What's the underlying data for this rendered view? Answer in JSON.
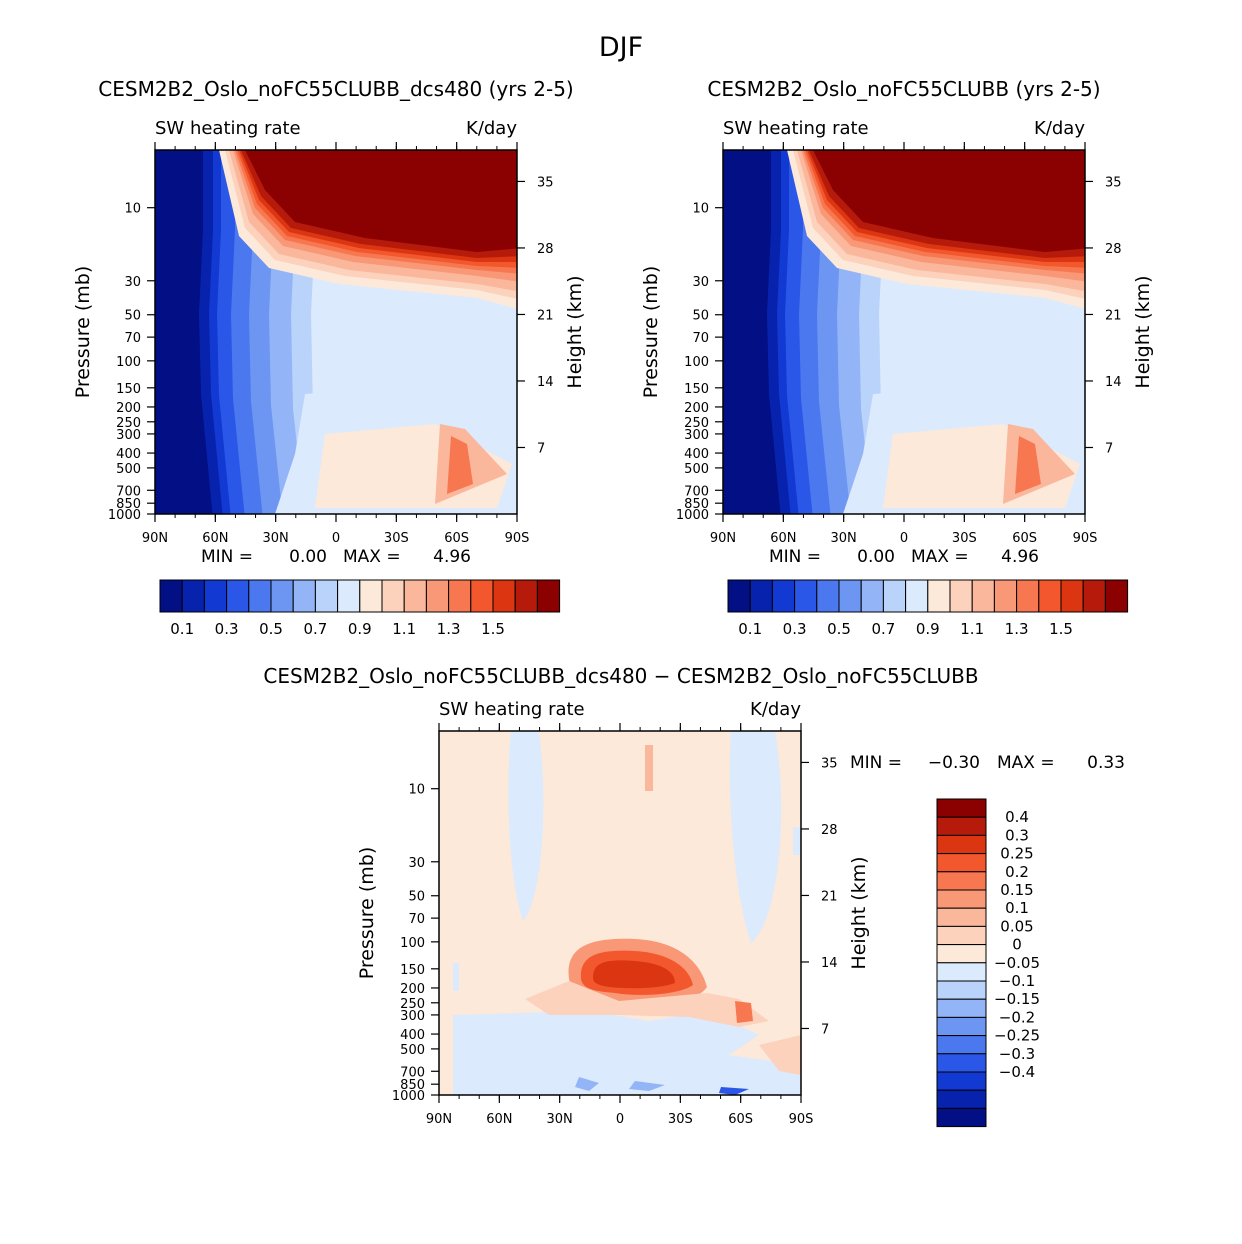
{
  "season": "DJF",
  "colors": {
    "pos_levels": [
      "#fde9d9",
      "#fcd2bd",
      "#fbb79c",
      "#f99877",
      "#f77850",
      "#f2572d",
      "#dc3512",
      "#b51a0a",
      "#8b0000"
    ],
    "neg_levels": [
      "#dbeafc",
      "#b9d3fb",
      "#93b5f7",
      "#6d96f3",
      "#4b78ef",
      "#2b57e8",
      "#1239d2",
      "#0723ad",
      "#020f85"
    ],
    "abs_levels": [
      "#020f85",
      "#0723ad",
      "#1239d2",
      "#2b57e8",
      "#4b78ef",
      "#6d96f3",
      "#93b5f7",
      "#b9d3fb",
      "#dbeafc",
      "#fde9d9",
      "#fcd2bd",
      "#fbb79c",
      "#f99877",
      "#f77850",
      "#f2572d",
      "#dc3512",
      "#b51a0a",
      "#8b0000"
    ],
    "diff_background": "#fde9d9"
  },
  "chart_data": [
    {
      "id": "panel1",
      "type": "contour",
      "title": "CESM2B2_Oslo_noFC55CLUBB_dcs480 (yrs 2-5)",
      "subtitle_left": "SW heating rate",
      "subtitle_right": "K/day",
      "ylabel": "Pressure (mb)",
      "ylabel_right": "Height (km)",
      "x_ticks": [
        "90N",
        "60N",
        "30N",
        "0",
        "30S",
        "60S",
        "90S"
      ],
      "y_ticks": [
        "10",
        "30",
        "50",
        "70",
        "100",
        "150",
        "200",
        "250",
        "300",
        "400",
        "500",
        "700",
        "850",
        "1000"
      ],
      "y_ticks_right": [
        "35",
        "28",
        "21",
        "14",
        "7"
      ],
      "min_label": "MIN =",
      "min_value": "0.00",
      "max_label": "MAX =",
      "max_value": "4.96",
      "colorbar_labels": [
        "0.1",
        "0.3",
        "0.5",
        "0.7",
        "0.9",
        "1.1",
        "1.3",
        "1.5"
      ]
    },
    {
      "id": "panel2",
      "type": "contour",
      "title": "CESM2B2_Oslo_noFC55CLUBB (yrs 2-5)",
      "subtitle_left": "SW heating rate",
      "subtitle_right": "K/day",
      "ylabel": "Pressure (mb)",
      "ylabel_right": "Height (km)",
      "x_ticks": [
        "90N",
        "60N",
        "30N",
        "0",
        "30S",
        "60S",
        "90S"
      ],
      "y_ticks": [
        "10",
        "30",
        "50",
        "70",
        "100",
        "150",
        "200",
        "250",
        "300",
        "400",
        "500",
        "700",
        "850",
        "1000"
      ],
      "y_ticks_right": [
        "35",
        "28",
        "21",
        "14",
        "7"
      ],
      "min_label": "MIN =",
      "min_value": "0.00",
      "max_label": "MAX =",
      "max_value": "4.96",
      "colorbar_labels": [
        "0.1",
        "0.3",
        "0.5",
        "0.7",
        "0.9",
        "1.1",
        "1.3",
        "1.5"
      ]
    },
    {
      "id": "panel3",
      "type": "contour",
      "title": "CESM2B2_Oslo_noFC55CLUBB_dcs480 − CESM2B2_Oslo_noFC55CLUBB",
      "subtitle_left": "SW heating rate",
      "subtitle_right": "K/day",
      "ylabel": "Pressure (mb)",
      "ylabel_right": "Height (km)",
      "x_ticks": [
        "90N",
        "60N",
        "30N",
        "0",
        "30S",
        "60S",
        "90S"
      ],
      "y_ticks": [
        "10",
        "30",
        "50",
        "70",
        "100",
        "150",
        "200",
        "250",
        "300",
        "400",
        "500",
        "700",
        "850",
        "1000"
      ],
      "y_ticks_right": [
        "35",
        "28",
        "21",
        "14",
        "7"
      ],
      "min_label": "MIN =",
      "min_value": "−0.30",
      "max_label": "MAX =",
      "max_value": "0.33",
      "colorbar_labels": [
        "0.4",
        "0.3",
        "0.25",
        "0.2",
        "0.15",
        "0.1",
        "0.05",
        "0",
        "−0.05",
        "−0.1",
        "−0.15",
        "−0.2",
        "−0.25",
        "−0.3",
        "−0.4"
      ]
    }
  ]
}
